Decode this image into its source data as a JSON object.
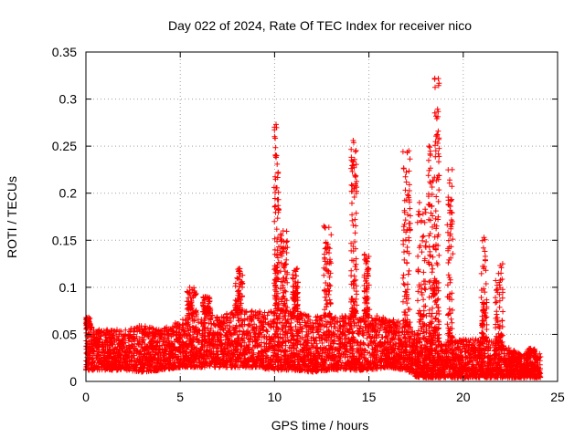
{
  "chart_data": {
    "type": "scatter",
    "title": "Day 022 of 2024, Rate Of TEC Index for receiver nico",
    "xlabel": "GPS time / hours",
    "ylabel": "ROTI / TECUs",
    "xlim": [
      0,
      25
    ],
    "ylim": [
      0,
      0.35
    ],
    "x_ticks": [
      0,
      5,
      10,
      15,
      20,
      25
    ],
    "x_tick_labels": [
      "0",
      "5",
      "10",
      "15",
      "20",
      "25"
    ],
    "y_ticks": [
      0,
      0.05,
      0.1,
      0.15,
      0.2,
      0.25,
      0.3,
      0.35
    ],
    "y_tick_labels": [
      "0",
      "0.05",
      "0.1",
      "0.15",
      "0.2",
      "0.25",
      "0.3",
      "0.35"
    ],
    "grid": true,
    "marker": "plus",
    "color": "#ff0000",
    "series": [
      {
        "name": "ROTI",
        "background_band": [
          {
            "x": 0.0,
            "low": 0.012,
            "high": 0.06
          },
          {
            "x": 1.0,
            "low": 0.012,
            "high": 0.055
          },
          {
            "x": 2.0,
            "low": 0.012,
            "high": 0.055
          },
          {
            "x": 3.0,
            "low": 0.01,
            "high": 0.06
          },
          {
            "x": 4.0,
            "low": 0.012,
            "high": 0.055
          },
          {
            "x": 5.0,
            "low": 0.015,
            "high": 0.065
          },
          {
            "x": 6.0,
            "low": 0.015,
            "high": 0.075
          },
          {
            "x": 7.0,
            "low": 0.015,
            "high": 0.07
          },
          {
            "x": 8.0,
            "low": 0.015,
            "high": 0.075
          },
          {
            "x": 9.0,
            "low": 0.015,
            "high": 0.075
          },
          {
            "x": 10.0,
            "low": 0.012,
            "high": 0.075
          },
          {
            "x": 11.0,
            "low": 0.012,
            "high": 0.075
          },
          {
            "x": 12.0,
            "low": 0.01,
            "high": 0.07
          },
          {
            "x": 13.0,
            "low": 0.012,
            "high": 0.07
          },
          {
            "x": 14.0,
            "low": 0.012,
            "high": 0.07
          },
          {
            "x": 15.0,
            "low": 0.012,
            "high": 0.07
          },
          {
            "x": 16.0,
            "low": 0.015,
            "high": 0.07
          },
          {
            "x": 17.0,
            "low": 0.012,
            "high": 0.06
          },
          {
            "x": 17.5,
            "low": 0.005,
            "high": 0.05
          },
          {
            "x": 18.0,
            "low": 0.004,
            "high": 0.045
          },
          {
            "x": 19.0,
            "low": 0.004,
            "high": 0.04
          },
          {
            "x": 20.0,
            "low": 0.004,
            "high": 0.045
          },
          {
            "x": 21.0,
            "low": 0.004,
            "high": 0.045
          },
          {
            "x": 22.0,
            "low": 0.004,
            "high": 0.04
          },
          {
            "x": 23.0,
            "low": 0.004,
            "high": 0.03
          },
          {
            "x": 24.0,
            "low": 0.004,
            "high": 0.03
          }
        ],
        "spikes": [
          {
            "x": 0.1,
            "peak": 0.068,
            "width": 0.3
          },
          {
            "x": 5.6,
            "peak": 0.1,
            "width": 0.5
          },
          {
            "x": 6.4,
            "peak": 0.09,
            "width": 0.4
          },
          {
            "x": 8.1,
            "peak": 0.12,
            "width": 0.4
          },
          {
            "x": 10.1,
            "peak": 0.273,
            "width": 0.25
          },
          {
            "x": 10.5,
            "peak": 0.16,
            "width": 0.4
          },
          {
            "x": 11.1,
            "peak": 0.12,
            "width": 0.3
          },
          {
            "x": 12.8,
            "peak": 0.165,
            "width": 0.4
          },
          {
            "x": 14.2,
            "peak": 0.256,
            "width": 0.3
          },
          {
            "x": 14.9,
            "peak": 0.135,
            "width": 0.3
          },
          {
            "x": 17.0,
            "peak": 0.245,
            "width": 0.4
          },
          {
            "x": 17.8,
            "peak": 0.19,
            "width": 0.5
          },
          {
            "x": 18.3,
            "peak": 0.25,
            "width": 0.3
          },
          {
            "x": 18.6,
            "peak": 0.322,
            "width": 0.25
          },
          {
            "x": 19.3,
            "peak": 0.225,
            "width": 0.3
          },
          {
            "x": 21.1,
            "peak": 0.153,
            "width": 0.3
          },
          {
            "x": 21.9,
            "peak": 0.125,
            "width": 0.4
          },
          {
            "x": 23.6,
            "peak": 0.035,
            "width": 0.4
          }
        ]
      }
    ]
  }
}
